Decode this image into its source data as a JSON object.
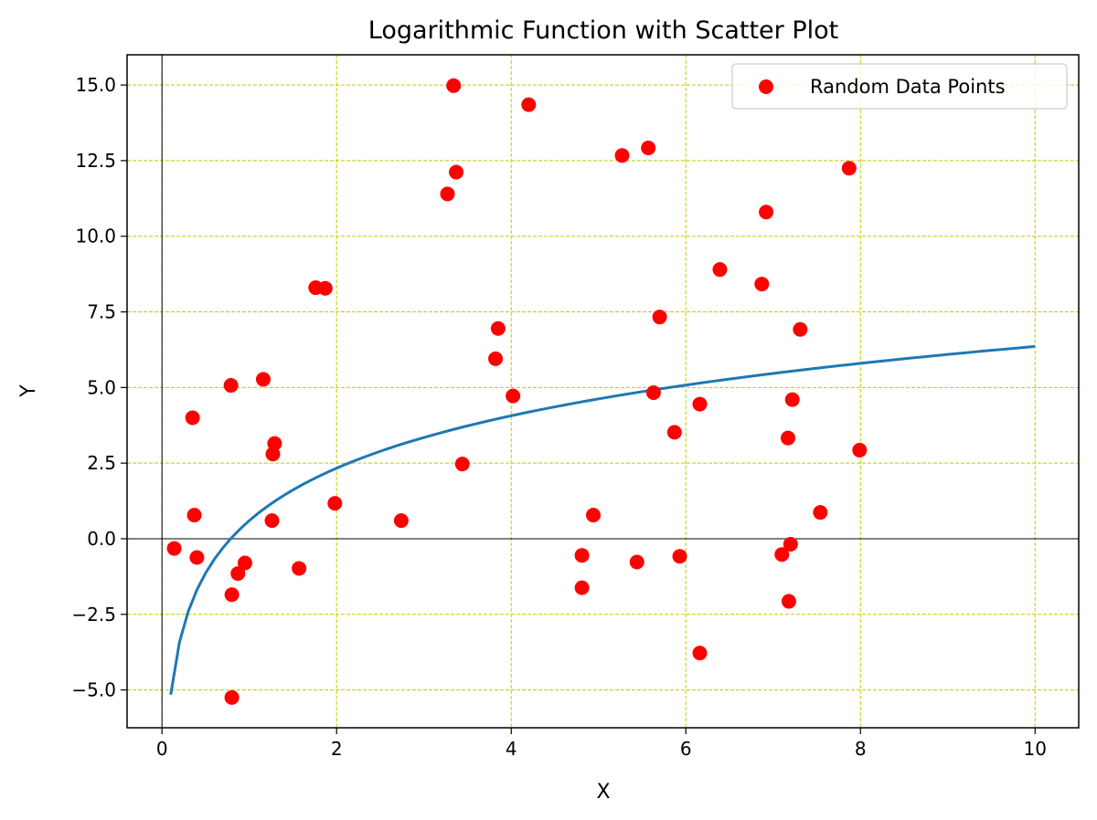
{
  "chart_data": {
    "type": "scatter",
    "title": "Logarithmic Function with Scatter Plot",
    "xlabel": "X",
    "ylabel": "Y",
    "xlim": [
      -0.4,
      10.5
    ],
    "ylim": [
      -6.25,
      16
    ],
    "xticks": [
      0,
      2,
      4,
      6,
      8,
      10
    ],
    "xtick_labels": [
      "0",
      "2",
      "4",
      "6",
      "8",
      "10"
    ],
    "yticks": [
      -5.0,
      -2.5,
      0.0,
      2.5,
      5.0,
      7.5,
      10.0,
      12.5,
      15.0
    ],
    "ytick_labels": [
      "−5.0",
      "−2.5",
      "0.0",
      "2.5",
      "5.0",
      "7.5",
      "10.0",
      "12.5",
      "15.0"
    ],
    "grid": true,
    "legend_position": "upper right",
    "colors": {
      "points": "#ff0000",
      "curve": "#1f77b4",
      "grid": "#c8c800",
      "zero_lines": "#000000"
    },
    "curve": {
      "function": "log(x) * 2.5 + 0.6",
      "x_range": [
        0.1,
        10
      ]
    },
    "series": [
      {
        "name": "Random Data Points",
        "points": [
          [
            0.14,
            -0.32
          ],
          [
            0.35,
            4.0
          ],
          [
            0.37,
            0.78
          ],
          [
            0.4,
            -0.62
          ],
          [
            0.79,
            5.07
          ],
          [
            0.8,
            -1.85
          ],
          [
            0.8,
            -5.25
          ],
          [
            0.87,
            -1.15
          ],
          [
            0.95,
            -0.8
          ],
          [
            1.16,
            5.27
          ],
          [
            1.26,
            0.6
          ],
          [
            1.27,
            2.8
          ],
          [
            1.29,
            3.15
          ],
          [
            1.57,
            -0.98
          ],
          [
            1.76,
            8.3
          ],
          [
            1.87,
            8.28
          ],
          [
            1.98,
            1.17
          ],
          [
            2.74,
            0.6
          ],
          [
            3.27,
            11.4
          ],
          [
            3.34,
            14.98
          ],
          [
            3.37,
            12.12
          ],
          [
            3.44,
            2.47
          ],
          [
            3.82,
            5.95
          ],
          [
            3.85,
            6.95
          ],
          [
            4.02,
            4.72
          ],
          [
            4.2,
            14.35
          ],
          [
            4.81,
            -0.55
          ],
          [
            4.81,
            -1.62
          ],
          [
            4.94,
            0.78
          ],
          [
            5.27,
            12.67
          ],
          [
            5.44,
            -0.77
          ],
          [
            5.57,
            12.92
          ],
          [
            5.63,
            4.83
          ],
          [
            5.7,
            7.33
          ],
          [
            5.87,
            3.52
          ],
          [
            5.93,
            -0.58
          ],
          [
            6.16,
            4.45
          ],
          [
            6.16,
            -3.78
          ],
          [
            6.39,
            8.9
          ],
          [
            6.87,
            8.42
          ],
          [
            6.92,
            10.8
          ],
          [
            7.1,
            -0.52
          ],
          [
            7.17,
            3.33
          ],
          [
            7.18,
            -2.07
          ],
          [
            7.2,
            -0.18
          ],
          [
            7.22,
            4.6
          ],
          [
            7.31,
            6.92
          ],
          [
            7.54,
            0.87
          ],
          [
            7.87,
            12.25
          ],
          [
            7.99,
            2.93
          ]
        ]
      }
    ]
  }
}
